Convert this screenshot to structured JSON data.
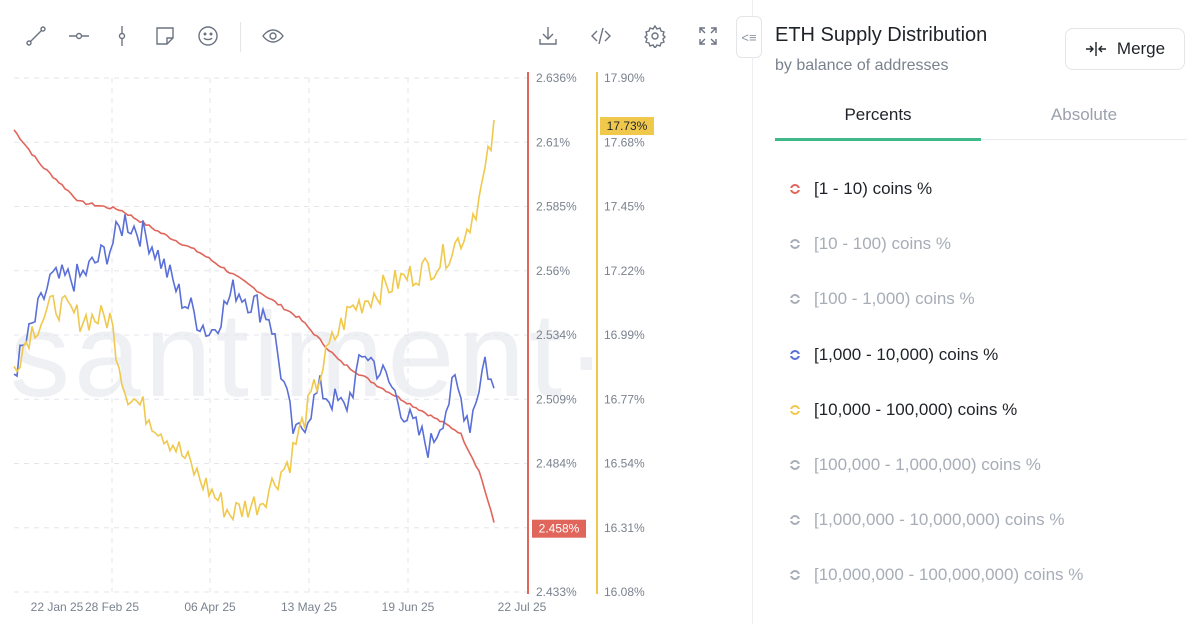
{
  "toolbar": {
    "icons": [
      "line-tool-icon",
      "horizontal-ray-icon",
      "vertical-line-icon",
      "note-icon",
      "emoji-icon",
      "eye-icon",
      "download-icon",
      "embed-code-icon",
      "settings-gear-icon",
      "fullscreen-icon"
    ]
  },
  "panel": {
    "title": "ETH Supply Distribution",
    "subtitle": "by balance of addresses",
    "merge_label": "Merge",
    "tabs": [
      {
        "label": "Percents",
        "active": true
      },
      {
        "label": "Absolute",
        "active": false
      }
    ],
    "metrics": [
      {
        "label": "[1 - 10) coins %",
        "active": true,
        "color": "#e0655b"
      },
      {
        "label": "[10 - 100) coins %",
        "active": false,
        "color": "#a7adb7"
      },
      {
        "label": "[100 - 1,000) coins %",
        "active": false,
        "color": "#a7adb7"
      },
      {
        "label": "[1,000 - 10,000) coins %",
        "active": true,
        "color": "#5a6fd8"
      },
      {
        "label": "[10,000 - 100,000) coins %",
        "active": true,
        "color": "#f0c94c"
      },
      {
        "label": "[100,000 - 1,000,000) coins %",
        "active": false,
        "color": "#a7adb7"
      },
      {
        "label": "[1,000,000 - 10,000,000) coins %",
        "active": false,
        "color": "#a7adb7"
      },
      {
        "label": "[10,000,000 - 100,000,000) coins %",
        "active": false,
        "color": "#a7adb7"
      }
    ]
  },
  "chart": {
    "watermark": "santiment·",
    "x_labels": [
      "22 Jan 25",
      "28 Feb 25",
      "06 Apr 25",
      "13 May 25",
      "19 Jun 25",
      "22 Jul 25"
    ],
    "left_axis": [
      "2.636%",
      "2.61%",
      "2.585%",
      "2.56%",
      "2.534%",
      "2.509%",
      "2.484%",
      "2.458%",
      "2.433%"
    ],
    "right_axis": [
      "17.90%",
      "17.68%",
      "17.45%",
      "17.22%",
      "16.99%",
      "16.77%",
      "16.54%",
      "16.31%",
      "16.08%"
    ],
    "red_last_badge": "2.458%",
    "yellow_last_badge": "17.73%",
    "red_color": "#e0655b",
    "blue_color": "#5a6fd8",
    "yellow_color": "#f0c94c"
  },
  "chart_data": {
    "type": "line",
    "x": [
      "22 Jan 25",
      "28 Feb 25",
      "06 Apr 25",
      "13 May 25",
      "19 Jun 25",
      "22 Jul 25"
    ],
    "series": [
      {
        "name": "[1 - 10) coins %",
        "axis": "left",
        "values": [
          2.614,
          2.583,
          2.566,
          2.547,
          2.519,
          2.459
        ]
      },
      {
        "name": "[1,000 - 10,000) coins %",
        "axis": "left",
        "values": [
          2.546,
          2.568,
          2.553,
          2.522,
          2.508,
          2.515
        ]
      },
      {
        "name": "[10,000 - 100,000) coins %",
        "axis": "right",
        "values": [
          17.0,
          16.72,
          16.38,
          16.97,
          17.1,
          17.73
        ]
      }
    ],
    "ylim_left": [
      2.433,
      2.636
    ],
    "ylim_right": [
      16.08,
      17.9
    ],
    "grid": true
  }
}
